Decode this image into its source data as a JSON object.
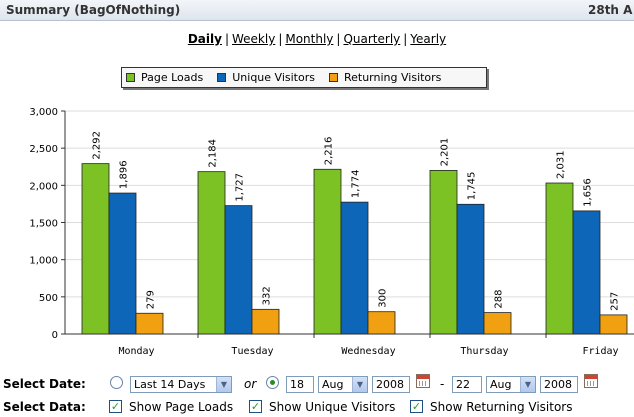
{
  "window": {
    "title": "Summary (BagOfNothing)",
    "date_partial": "28th A"
  },
  "range_links": [
    "Daily",
    "Weekly",
    "Monthly",
    "Quarterly",
    "Yearly"
  ],
  "range_separator": "|",
  "active_range": "Daily",
  "colors": {
    "page_loads": "#7cc224",
    "unique_visitors": "#0d66b8",
    "returning_visitors": "#f0a010",
    "grid": "#dddddd"
  },
  "chart_data": {
    "type": "bar",
    "categories": [
      "Monday",
      "Tuesday",
      "Wednesday",
      "Thursday",
      "Friday"
    ],
    "series": [
      {
        "name": "Page Loads",
        "values": [
          2292,
          2184,
          2216,
          2201,
          2031
        ]
      },
      {
        "name": "Unique Visitors",
        "values": [
          1896,
          1727,
          1774,
          1745,
          1656
        ]
      },
      {
        "name": "Returning Visitors",
        "values": [
          279,
          332,
          300,
          288,
          257
        ]
      }
    ],
    "value_labels": [
      [
        "2,292",
        "2,184",
        "2,216",
        "2,201",
        "2,031"
      ],
      [
        "1,896",
        "1,727",
        "1,774",
        "1,745",
        "1,656"
      ],
      [
        "279",
        "332",
        "300",
        "288",
        "257"
      ]
    ],
    "yticks": [
      0,
      500,
      1000,
      1500,
      2000,
      2500,
      3000
    ],
    "ytick_labels": [
      "0",
      "500",
      "1,000",
      "1,500",
      "2,000",
      "2,500",
      "3,000"
    ],
    "ylim": [
      0,
      3000
    ],
    "grid": true,
    "legend_position": "top-center",
    "title": "",
    "xlabel": "",
    "ylabel": ""
  },
  "controls": {
    "select_date_label": "Select Date:",
    "select_data_label": "Select Data:",
    "preset_range": "Last 14 Days",
    "or_text": "or",
    "from_day": "18",
    "from_month": "Aug",
    "from_year": "2008",
    "dash": "-",
    "to_day": "22",
    "to_month": "Aug",
    "to_year": "2008",
    "show_page_loads": "Show Page Loads",
    "show_unique_visitors": "Show Unique Visitors",
    "show_returning_visitors": "Show Returning Visitors"
  }
}
